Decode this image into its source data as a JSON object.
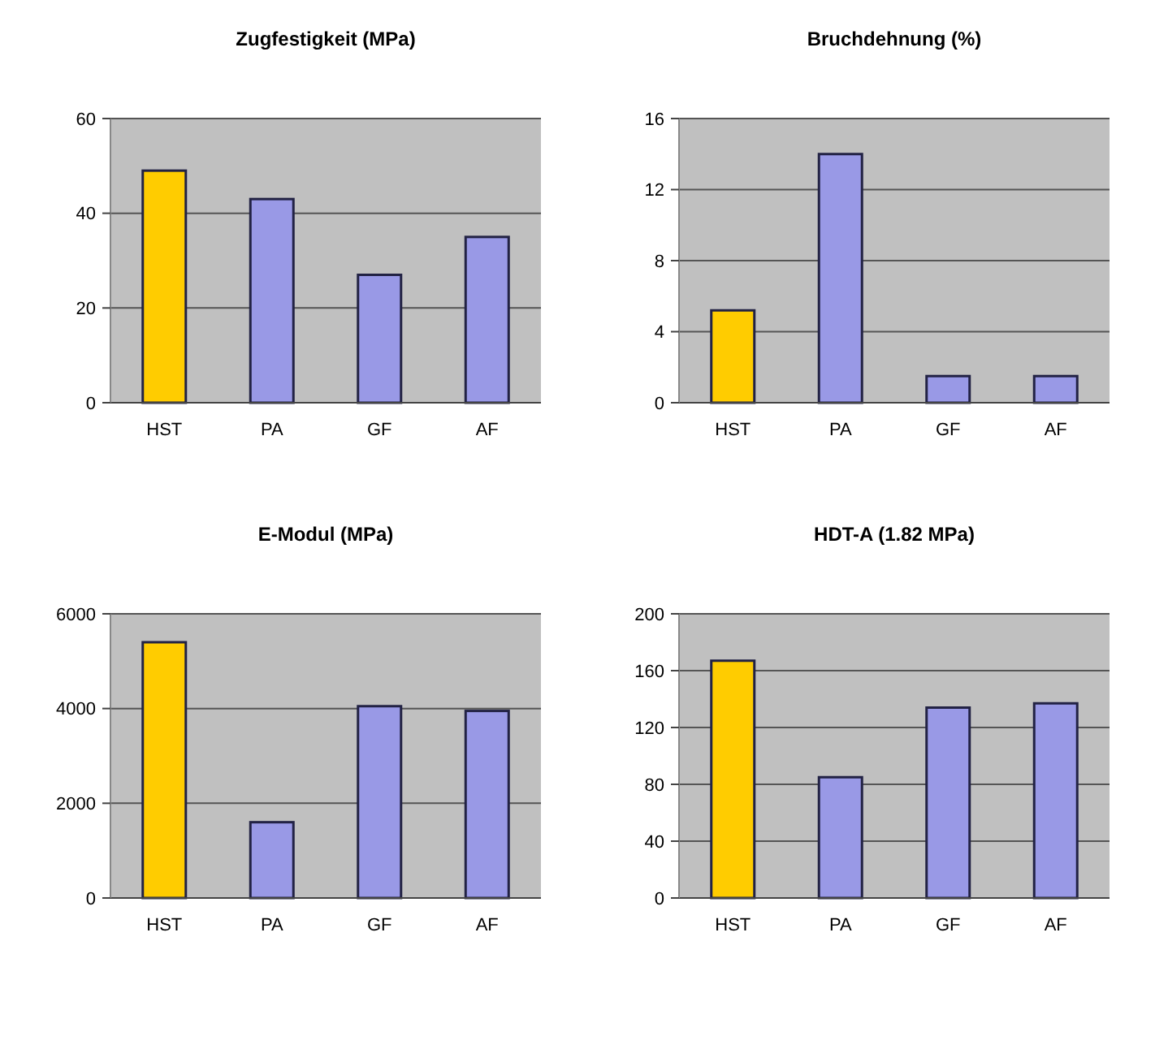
{
  "chart_data": [
    {
      "type": "bar",
      "title": "Zugfestigkeit (MPa)",
      "categories": [
        "HST",
        "PA",
        "GF",
        "AF"
      ],
      "values": [
        49,
        43,
        27,
        35
      ],
      "colors": [
        "#ffcc00",
        "#9999e6",
        "#9999e6",
        "#9999e6"
      ],
      "ylim": [
        0,
        60
      ],
      "yticks": [
        0,
        20,
        40,
        60
      ],
      "grid": "y"
    },
    {
      "type": "bar",
      "title": "Bruchdehnung (%)",
      "categories": [
        "HST",
        "PA",
        "GF",
        "AF"
      ],
      "values": [
        5.2,
        14,
        1.5,
        1.5
      ],
      "colors": [
        "#ffcc00",
        "#9999e6",
        "#9999e6",
        "#9999e6"
      ],
      "ylim": [
        0,
        16
      ],
      "yticks": [
        0,
        4,
        8,
        12,
        16
      ],
      "grid": "y"
    },
    {
      "type": "bar",
      "title": "E-Modul (MPa)",
      "categories": [
        "HST",
        "PA",
        "GF",
        "AF"
      ],
      "values": [
        5400,
        1600,
        4050,
        3950
      ],
      "colors": [
        "#ffcc00",
        "#9999e6",
        "#9999e6",
        "#9999e6"
      ],
      "ylim": [
        0,
        6000
      ],
      "yticks": [
        0,
        2000,
        4000,
        6000
      ],
      "grid": "y"
    },
    {
      "type": "bar",
      "title": "HDT-A (1.82 MPa)",
      "categories": [
        "HST",
        "PA",
        "GF",
        "AF"
      ],
      "values": [
        167,
        85,
        134,
        137
      ],
      "colors": [
        "#ffcc00",
        "#9999e6",
        "#9999e6",
        "#9999e6"
      ],
      "ylim": [
        0,
        200
      ],
      "yticks": [
        0,
        40,
        80,
        120,
        160,
        200
      ],
      "grid": "y"
    }
  ]
}
